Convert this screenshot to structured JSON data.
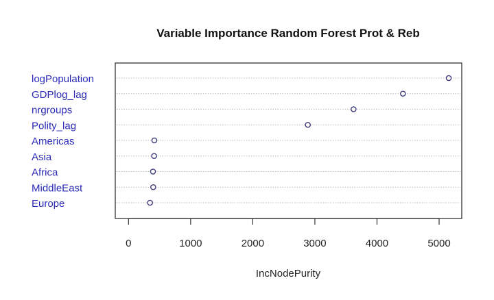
{
  "chart_data": {
    "type": "scatter",
    "subtype": "dotchart",
    "title": "Variable Importance Random Forest Prot & Reb",
    "xlabel": "IncNodePurity",
    "ylabel": "",
    "categories": [
      "logPopulation",
      "GDPlog_lag",
      "nrgroups",
      "Polity_lag",
      "Americas",
      "Asia",
      "Africa",
      "MiddleEast",
      "Europe"
    ],
    "values": [
      5155,
      4418,
      3623,
      2887,
      416,
      412,
      394,
      398,
      346
    ],
    "xticks": [
      0,
      1000,
      2000,
      3000,
      4000,
      5000
    ],
    "xtick_labels": [
      "0",
      "1000",
      "2000",
      "3000",
      "4000",
      "5000"
    ],
    "xlim": [
      -90,
      5400
    ],
    "grid": "dotted horizontal lines per row",
    "colors": {
      "labels": "#2b2bb8",
      "points": "#3d3a7a",
      "grid": "#bbbbbb",
      "axis": "#333333"
    }
  }
}
